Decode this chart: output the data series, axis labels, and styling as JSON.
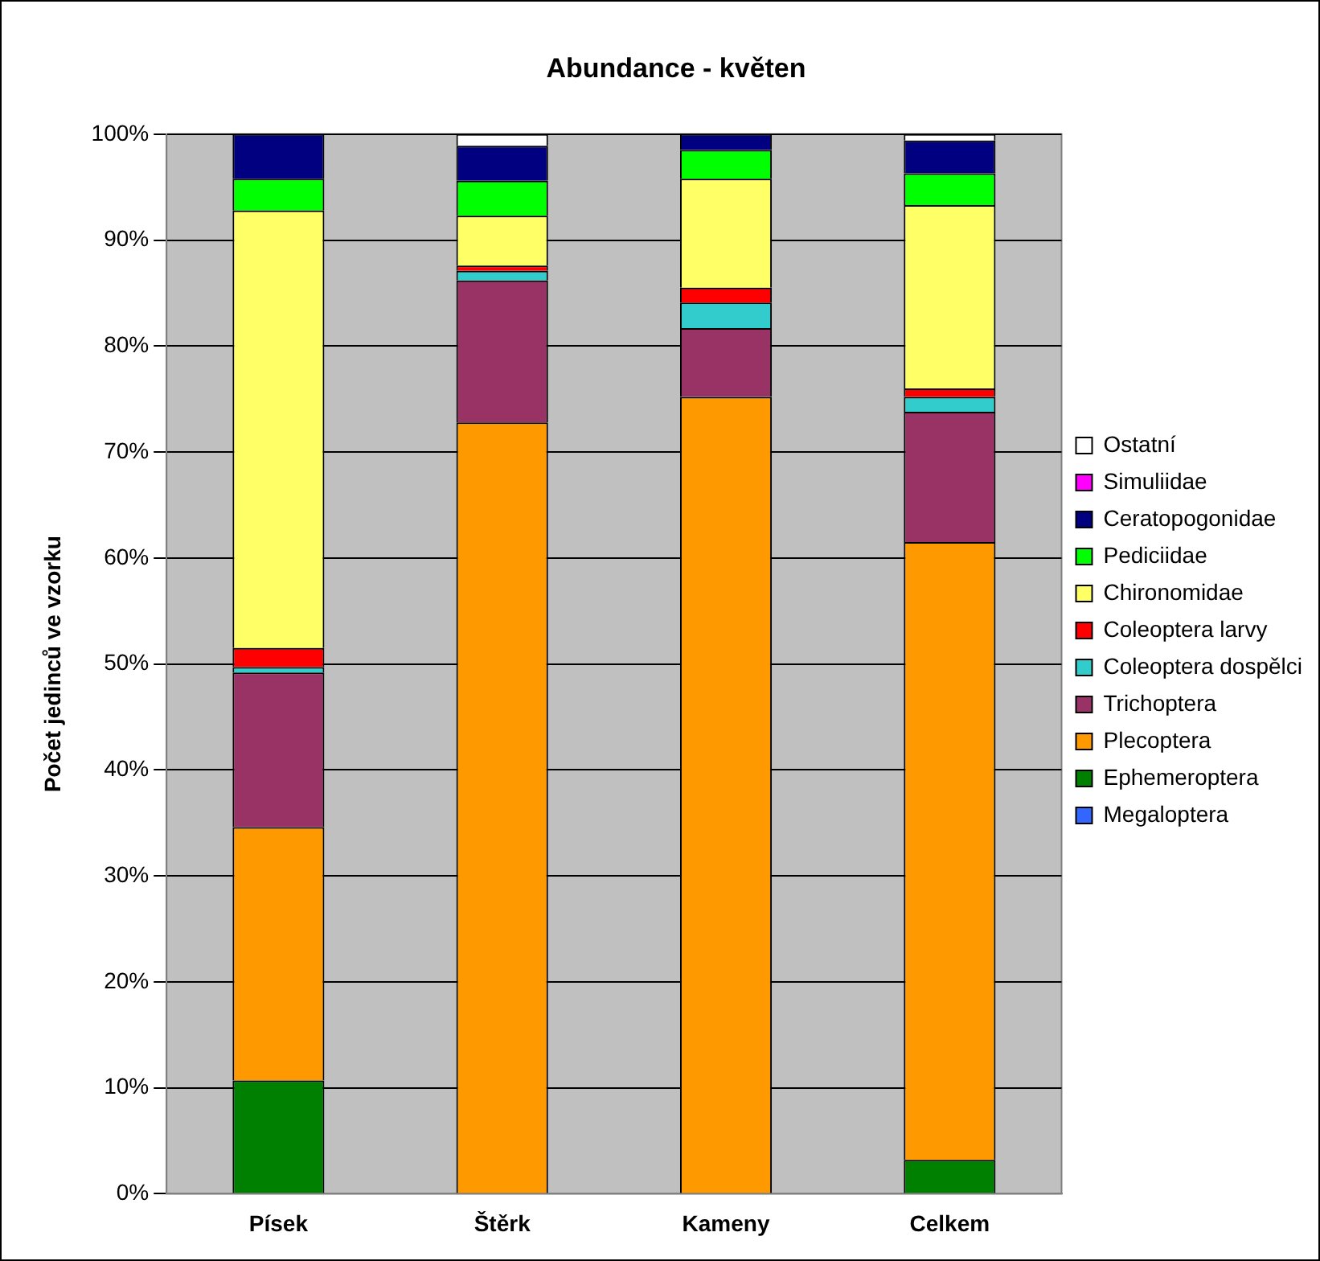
{
  "chart_data": {
    "type": "bar",
    "title": "Abundance - květen",
    "ylabel": "Počet jedinců ve vzorku",
    "categories": [
      "Písek",
      "Štěrk",
      "Kameny",
      "Celkem"
    ],
    "stacked": true,
    "legend": "right",
    "grid": "y",
    "ylim": [
      0,
      100
    ],
    "yticks": [
      {
        "value": 0,
        "label": "0%"
      },
      {
        "value": 10,
        "label": "10%"
      },
      {
        "value": 20,
        "label": "20%"
      },
      {
        "value": 30,
        "label": "30%"
      },
      {
        "value": 40,
        "label": "40%"
      },
      {
        "value": 50,
        "label": "50%"
      },
      {
        "value": 60,
        "label": "60%"
      },
      {
        "value": 70,
        "label": "70%"
      },
      {
        "value": 80,
        "label": "80%"
      },
      {
        "value": 90,
        "label": "90%"
      },
      {
        "value": 100,
        "label": "100%"
      }
    ],
    "series": [
      {
        "name": "Megaloptera",
        "color": "#3366ff",
        "values": [
          0,
          0,
          0,
          0
        ]
      },
      {
        "name": "Ephemeroptera",
        "color": "#008000",
        "values": [
          10.7,
          0,
          0,
          3.2
        ]
      },
      {
        "name": "Plecoptera",
        "color": "#ff9900",
        "values": [
          23.9,
          72.8,
          75.2,
          58.3
        ]
      },
      {
        "name": "Trichoptera",
        "color": "#993366",
        "values": [
          14.6,
          13.4,
          6.5,
          12.3
        ]
      },
      {
        "name": "Coleoptera dospělci",
        "color": "#33cccc",
        "values": [
          0.5,
          0.9,
          2.4,
          1.4
        ]
      },
      {
        "name": "Coleoptera larvy",
        "color": "#ff0000",
        "values": [
          1.8,
          0.5,
          1.4,
          0.8
        ]
      },
      {
        "name": "Chironomidae",
        "color": "#ffff66",
        "values": [
          41.3,
          4.7,
          10.3,
          17.3
        ]
      },
      {
        "name": "Pediciidae",
        "color": "#00ff00",
        "values": [
          3.0,
          3.3,
          2.7,
          3.0
        ]
      },
      {
        "name": "Ceratopogonidae",
        "color": "#000080",
        "values": [
          4.2,
          3.3,
          1.5,
          3.1
        ]
      },
      {
        "name": "Simuliidae",
        "color": "#ff00ff",
        "values": [
          0,
          0,
          0,
          0
        ]
      },
      {
        "name": "Ostatní",
        "color": "#ffffff",
        "values": [
          0,
          1.1,
          0,
          0.6
        ]
      }
    ]
  }
}
